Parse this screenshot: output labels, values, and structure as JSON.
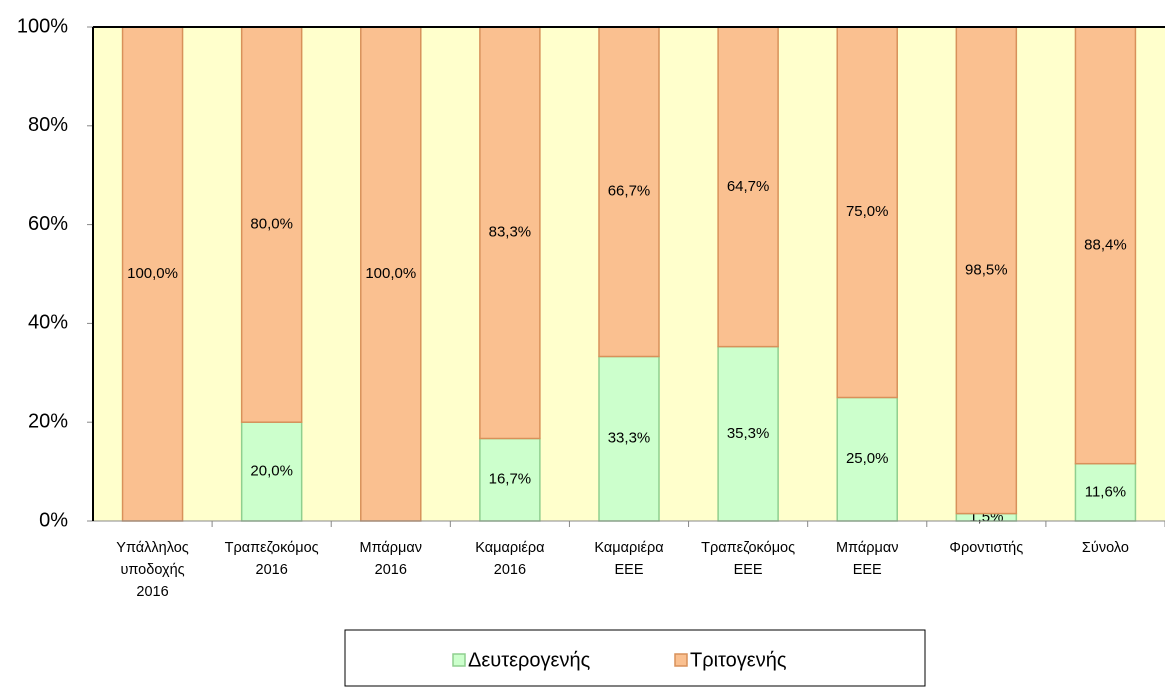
{
  "chart_data": {
    "type": "stacked_bar",
    "categories": [
      [
        "Υπάλληλος",
        "υποδοχής",
        "2016"
      ],
      [
        "Τραπεζοκόμος",
        "2016"
      ],
      [
        "Μπάρμαν",
        "2016"
      ],
      [
        "Καμαριέρα",
        "2016"
      ],
      [
        "Καμαριέρα",
        "ΕΕΕ"
      ],
      [
        "Τραπεζοκόμος",
        "ΕΕΕ"
      ],
      [
        "Μπάρμαν",
        "ΕΕΕ"
      ],
      [
        "Φροντιστής"
      ],
      [
        "Σύνολο"
      ]
    ],
    "series": [
      {
        "name": "Δευτερογενής",
        "color": "#ccffcc",
        "values": [
          0,
          20.0,
          0,
          16.7,
          33.3,
          35.3,
          25.0,
          1.5,
          11.6
        ],
        "value_labels": [
          null,
          "20,0%",
          null,
          "16,7%",
          "33,3%",
          "35,3%",
          "25,0%",
          "1,5%",
          "11,6%"
        ]
      },
      {
        "name": "Τριτογενής",
        "color": "#fac090",
        "values": [
          100.0,
          80.0,
          100.0,
          83.3,
          66.7,
          64.7,
          75.0,
          98.5,
          88.4
        ],
        "value_labels": [
          "100,0%",
          "80,0%",
          "100,0%",
          "83,3%",
          "66,7%",
          "64,7%",
          "75,0%",
          "98,5%",
          "88,4%"
        ]
      }
    ],
    "ylim": [
      0,
      100
    ],
    "yticks": [
      {
        "value": 0,
        "label": "0%"
      },
      {
        "value": 20,
        "label": "20%"
      },
      {
        "value": 40,
        "label": "40%"
      },
      {
        "value": 60,
        "label": "60%"
      },
      {
        "value": 80,
        "label": "80%"
      },
      {
        "value": 100,
        "label": "100%"
      }
    ],
    "legend": "bottom"
  }
}
